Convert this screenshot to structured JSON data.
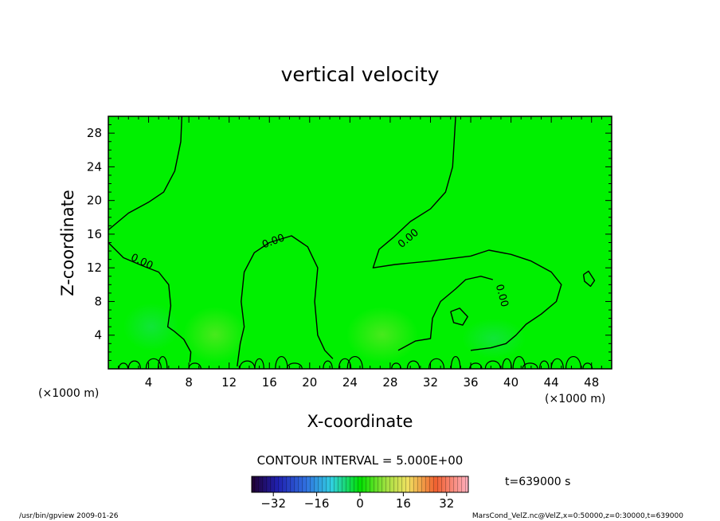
{
  "chart_data": {
    "type": "contour",
    "title": "vertical velocity",
    "xlabel": "X-coordinate",
    "ylabel": "Z-coordinate",
    "x_unit": "(×1000 m)",
    "y_unit": "(×1000 m)",
    "xlim": [
      0,
      50
    ],
    "ylim": [
      0,
      30
    ],
    "x_ticks": [
      4,
      8,
      12,
      16,
      20,
      24,
      28,
      32,
      36,
      40,
      44,
      48
    ],
    "y_ticks": [
      4,
      8,
      12,
      16,
      20,
      24,
      28
    ],
    "contour_interval_text": "CONTOUR INTERVAL = 5.000E+00",
    "contour_labels": [
      {
        "text": "0.00",
        "x": 3.2,
        "z": 12.4
      },
      {
        "text": "0.00",
        "x": 16.5,
        "z": 14.8
      },
      {
        "text": "0.00",
        "x": 30.0,
        "z": 15.2
      },
      {
        "text": "0.00",
        "x": 38.8,
        "z": 8.6
      }
    ],
    "contours": [
      [
        [
          0,
          16.5
        ],
        [
          2,
          18.5
        ],
        [
          4,
          19.8
        ],
        [
          5.5,
          21
        ],
        [
          6.6,
          23.5
        ],
        [
          7.2,
          27
        ],
        [
          7.3,
          30
        ]
      ],
      [
        [
          0,
          15
        ],
        [
          1.5,
          13.2
        ],
        [
          3.5,
          12.2
        ],
        [
          5,
          11.5
        ],
        [
          6,
          10
        ],
        [
          6.2,
          7.5
        ],
        [
          5.9,
          5
        ],
        [
          6.5,
          4.5
        ],
        [
          7.5,
          3.5
        ],
        [
          8.2,
          2
        ],
        [
          8.1,
          0.8
        ]
      ],
      [
        [
          12.8,
          0.3
        ],
        [
          13.1,
          3
        ],
        [
          13.5,
          5
        ],
        [
          13.2,
          8
        ],
        [
          13.5,
          11.5
        ],
        [
          14.5,
          13.8
        ],
        [
          16,
          15
        ],
        [
          18.2,
          15.8
        ],
        [
          19.8,
          14.5
        ],
        [
          20.8,
          12
        ],
        [
          20.5,
          8
        ],
        [
          20.8,
          4
        ],
        [
          21.5,
          2.2
        ],
        [
          22.3,
          1.2
        ]
      ],
      [
        [
          34.5,
          30
        ],
        [
          34.2,
          24
        ],
        [
          33.5,
          21
        ],
        [
          32,
          19
        ],
        [
          30,
          17.5
        ],
        [
          28.3,
          15.6
        ],
        [
          26.9,
          14.2
        ],
        [
          26.3,
          12
        ],
        [
          28.5,
          12.4
        ],
        [
          32,
          12.8
        ],
        [
          36,
          13.4
        ],
        [
          37.8,
          14.1
        ],
        [
          40,
          13.6
        ],
        [
          42,
          12.8
        ],
        [
          44,
          11.5
        ],
        [
          45,
          10
        ],
        [
          44.5,
          8
        ],
        [
          43,
          6.5
        ],
        [
          41.5,
          5.3
        ],
        [
          40.5,
          4
        ],
        [
          39.5,
          3
        ],
        [
          38,
          2.5
        ],
        [
          36,
          2.2
        ]
      ],
      [
        [
          28.8,
          2.2
        ],
        [
          30.5,
          3.3
        ],
        [
          32,
          3.6
        ],
        [
          32.2,
          6
        ],
        [
          33,
          8
        ],
        [
          34.5,
          9.5
        ],
        [
          35.5,
          10.6
        ],
        [
          37,
          11
        ],
        [
          38.2,
          10.6
        ]
      ],
      [
        [
          34,
          6.8
        ],
        [
          34.9,
          7.2
        ],
        [
          35.7,
          6.2
        ],
        [
          35.2,
          5.2
        ],
        [
          34.3,
          5.5
        ],
        [
          34,
          6.8
        ]
      ],
      [
        [
          47.2,
          11.2
        ],
        [
          47.7,
          11.6
        ],
        [
          48.3,
          10.5
        ],
        [
          47.9,
          9.8
        ],
        [
          47.3,
          10.4
        ],
        [
          47.2,
          11.2
        ]
      ]
    ],
    "colorbar": {
      "min": -40,
      "max": 40,
      "ticks": [
        -32,
        -16,
        0,
        16,
        32
      ]
    },
    "time_text": "t=639000 s"
  },
  "footer": {
    "left": "/usr/bin/gpview  2009-01-26",
    "right": "MarsCond_VelZ.nc@VelZ,x=0:50000,z=0:30000,t=639000"
  },
  "colors": {
    "field": "#00f000",
    "contour": "#000000"
  }
}
